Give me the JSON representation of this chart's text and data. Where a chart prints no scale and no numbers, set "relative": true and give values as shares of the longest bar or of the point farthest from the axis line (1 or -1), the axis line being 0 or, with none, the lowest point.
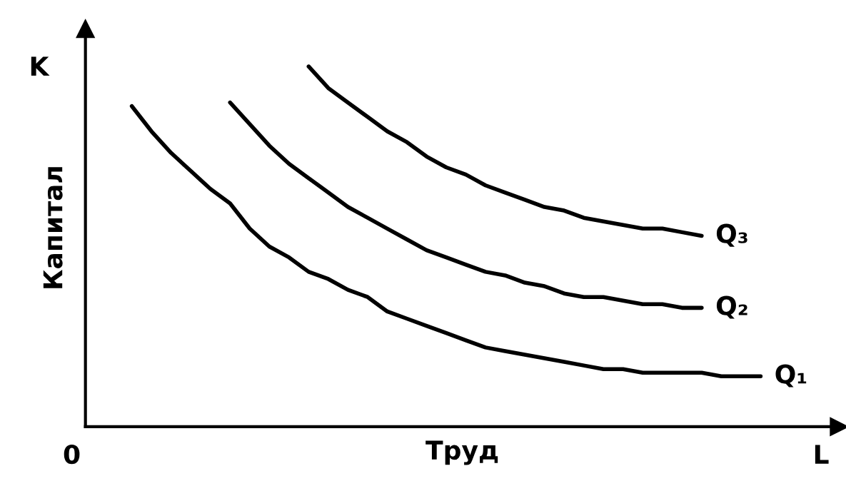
{
  "chart_data": {
    "type": "line",
    "relative": true,
    "xlabel": "Труд",
    "ylabel": "Капитал",
    "annotations": [
      "K",
      "L",
      "0"
    ],
    "categories": [
      null,
      null,
      null,
      null,
      null,
      null,
      null,
      null,
      null,
      null,
      null,
      null,
      null,
      null,
      null,
      null,
      null,
      null,
      null,
      null,
      null,
      null,
      null,
      null,
      null,
      null,
      null,
      null,
      null,
      null,
      null,
      null,
      null
    ],
    "series": [
      {
        "name": "Q₁",
        "color": "#000000",
        "values": [
          0.89,
          0.82,
          0.76,
          0.71,
          0.66,
          0.62,
          0.55,
          0.5,
          0.47,
          0.43,
          0.41,
          0.38,
          0.36,
          0.32,
          0.3,
          0.28,
          0.26,
          0.24,
          0.22,
          0.21,
          0.2,
          0.19,
          0.18,
          0.17,
          0.16,
          0.16,
          0.15,
          0.15,
          0.15,
          0.15,
          0.14,
          0.14,
          0.14
        ]
      },
      {
        "name": "Q₂",
        "color": "#000000",
        "values": [
          null,
          null,
          null,
          null,
          null,
          0.9,
          0.84,
          0.78,
          0.73,
          0.69,
          0.65,
          0.61,
          0.58,
          0.55,
          0.52,
          0.49,
          0.47,
          0.45,
          0.43,
          0.42,
          0.4,
          0.39,
          0.37,
          0.36,
          0.36,
          0.35,
          0.34,
          0.34,
          0.33,
          0.33,
          null,
          null,
          null
        ]
      },
      {
        "name": "Q₃",
        "color": "#000000",
        "values": [
          null,
          null,
          null,
          null,
          null,
          null,
          null,
          null,
          null,
          1.0,
          0.94,
          0.9,
          0.86,
          0.82,
          0.79,
          0.75,
          0.72,
          0.7,
          0.67,
          0.65,
          0.63,
          0.61,
          0.6,
          0.58,
          0.57,
          0.56,
          0.55,
          0.55,
          0.54,
          0.53,
          null,
          null,
          null
        ]
      }
    ]
  }
}
